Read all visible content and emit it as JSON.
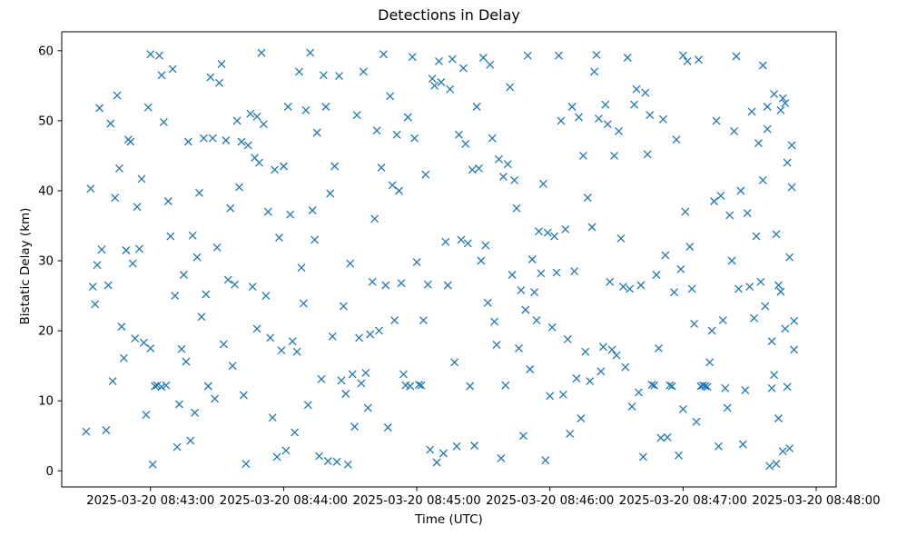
{
  "chart_data": {
    "type": "scatter",
    "title": "Detections in Delay",
    "xlabel": "Time (UTC)",
    "ylabel": "Bistatic Delay (km)",
    "marker": "x",
    "marker_color": "#1f77b4",
    "axes_color": "#000000",
    "x_unit": "seconds after 2025-03-20 08:42:00 UTC",
    "xlim": [
      20,
      369
    ],
    "ylim": [
      -2.3,
      62.7
    ],
    "x_ticks": [
      {
        "t": 60,
        "label": "2025-03-20 08:43:00"
      },
      {
        "t": 120,
        "label": "2025-03-20 08:44:00"
      },
      {
        "t": 180,
        "label": "2025-03-20 08:45:00"
      },
      {
        "t": 240,
        "label": "2025-03-20 08:46:00"
      },
      {
        "t": 300,
        "label": "2025-03-20 08:47:00"
      },
      {
        "t": 360,
        "label": "2025-03-20 08:48:00"
      }
    ],
    "y_ticks": [
      0,
      10,
      20,
      30,
      40,
      50,
      60
    ],
    "points": [
      [
        31,
        5.6
      ],
      [
        33,
        40.3
      ],
      [
        34,
        26.3
      ],
      [
        35,
        23.8
      ],
      [
        36,
        29.4
      ],
      [
        37,
        51.8
      ],
      [
        38,
        31.6
      ],
      [
        40,
        5.8
      ],
      [
        41,
        26.5
      ],
      [
        42,
        49.6
      ],
      [
        43,
        12.8
      ],
      [
        44,
        39.0
      ],
      [
        45,
        53.6
      ],
      [
        46,
        43.2
      ],
      [
        47,
        20.6
      ],
      [
        48,
        16.1
      ],
      [
        49,
        31.5
      ],
      [
        50,
        47.3
      ],
      [
        51,
        47.0
      ],
      [
        52,
        29.6
      ],
      [
        53,
        18.9
      ],
      [
        54,
        37.7
      ],
      [
        55,
        31.7
      ],
      [
        56,
        41.7
      ],
      [
        57,
        18.3
      ],
      [
        58,
        8.0
      ],
      [
        59,
        51.9
      ],
      [
        60,
        59.5
      ],
      [
        60,
        17.5
      ],
      [
        61,
        0.9
      ],
      [
        62,
        12.1
      ],
      [
        63,
        12.2
      ],
      [
        64,
        59.3
      ],
      [
        65,
        56.5
      ],
      [
        65,
        12.0
      ],
      [
        66,
        49.8
      ],
      [
        67,
        12.2
      ],
      [
        68,
        38.5
      ],
      [
        69,
        33.5
      ],
      [
        70,
        57.4
      ],
      [
        71,
        25.0
      ],
      [
        72,
        3.4
      ],
      [
        73,
        9.5
      ],
      [
        74,
        17.4
      ],
      [
        75,
        28.0
      ],
      [
        76,
        15.6
      ],
      [
        77,
        47.0
      ],
      [
        78,
        4.3
      ],
      [
        79,
        33.6
      ],
      [
        80,
        8.3
      ],
      [
        81,
        30.5
      ],
      [
        82,
        39.7
      ],
      [
        83,
        22.0
      ],
      [
        84,
        47.5
      ],
      [
        85,
        25.2
      ],
      [
        86,
        12.1
      ],
      [
        87,
        56.2
      ],
      [
        88,
        47.5
      ],
      [
        89,
        10.3
      ],
      [
        90,
        31.9
      ],
      [
        91,
        55.4
      ],
      [
        92,
        58.1
      ],
      [
        93,
        18.1
      ],
      [
        94,
        47.2
      ],
      [
        95,
        27.3
      ],
      [
        96,
        37.5
      ],
      [
        97,
        15.0
      ],
      [
        98,
        26.6
      ],
      [
        99,
        50.0
      ],
      [
        100,
        40.5
      ],
      [
        101,
        47.0
      ],
      [
        102,
        10.8
      ],
      [
        103,
        1.0
      ],
      [
        104,
        46.5
      ],
      [
        105,
        51.0
      ],
      [
        106,
        26.3
      ],
      [
        107,
        44.7
      ],
      [
        108,
        20.3
      ],
      [
        108,
        50.6
      ],
      [
        109,
        44.0
      ],
      [
        110,
        59.7
      ],
      [
        111,
        49.5
      ],
      [
        112,
        25.0
      ],
      [
        113,
        37.0
      ],
      [
        114,
        19.0
      ],
      [
        115,
        7.6
      ],
      [
        116,
        43.0
      ],
      [
        117,
        2.0
      ],
      [
        118,
        33.3
      ],
      [
        119,
        17.2
      ],
      [
        120,
        43.5
      ],
      [
        121,
        2.9
      ],
      [
        122,
        52.0
      ],
      [
        123,
        36.6
      ],
      [
        124,
        18.5
      ],
      [
        125,
        5.5
      ],
      [
        126,
        17.0
      ],
      [
        127,
        57.0
      ],
      [
        128,
        29.0
      ],
      [
        129,
        23.9
      ],
      [
        130,
        51.5
      ],
      [
        131,
        9.4
      ],
      [
        132,
        59.7
      ],
      [
        133,
        37.2
      ],
      [
        134,
        33.0
      ],
      [
        135,
        48.3
      ],
      [
        136,
        2.1
      ],
      [
        137,
        13.1
      ],
      [
        138,
        56.5
      ],
      [
        139,
        52.0
      ],
      [
        140,
        1.4
      ],
      [
        141,
        39.6
      ],
      [
        142,
        19.2
      ],
      [
        143,
        43.5
      ],
      [
        144,
        1.3
      ],
      [
        145,
        56.4
      ],
      [
        146,
        12.9
      ],
      [
        147,
        23.5
      ],
      [
        148,
        11.0
      ],
      [
        149,
        0.9
      ],
      [
        150,
        29.6
      ],
      [
        151,
        13.8
      ],
      [
        152,
        6.3
      ],
      [
        153,
        50.8
      ],
      [
        154,
        19.0
      ],
      [
        155,
        12.5
      ],
      [
        156,
        57.0
      ],
      [
        157,
        14.0
      ],
      [
        158,
        9.0
      ],
      [
        159,
        19.5
      ],
      [
        160,
        27.0
      ],
      [
        161,
        36.0
      ],
      [
        162,
        48.6
      ],
      [
        163,
        20.0
      ],
      [
        164,
        43.3
      ],
      [
        165,
        59.5
      ],
      [
        166,
        26.5
      ],
      [
        167,
        6.2
      ],
      [
        168,
        53.5
      ],
      [
        169,
        40.8
      ],
      [
        170,
        21.5
      ],
      [
        171,
        48.0
      ],
      [
        172,
        40.0
      ],
      [
        173,
        26.8
      ],
      [
        174,
        13.8
      ],
      [
        175,
        12.2
      ],
      [
        176,
        50.5
      ],
      [
        177,
        12.1
      ],
      [
        178,
        59.1
      ],
      [
        179,
        47.5
      ],
      [
        180,
        29.8
      ],
      [
        181,
        12.3
      ],
      [
        182,
        12.2
      ],
      [
        183,
        21.5
      ],
      [
        184,
        42.3
      ],
      [
        185,
        26.6
      ],
      [
        186,
        3.0
      ],
      [
        187,
        56.0
      ],
      [
        188,
        55.0
      ],
      [
        189,
        1.2
      ],
      [
        190,
        58.5
      ],
      [
        191,
        55.5
      ],
      [
        192,
        2.5
      ],
      [
        193,
        32.7
      ],
      [
        194,
        26.5
      ],
      [
        195,
        54.5
      ],
      [
        196,
        58.8
      ],
      [
        197,
        15.5
      ],
      [
        198,
        3.5
      ],
      [
        199,
        48.0
      ],
      [
        200,
        33.0
      ],
      [
        201,
        57.5
      ],
      [
        202,
        46.7
      ],
      [
        203,
        32.5
      ],
      [
        204,
        12.1
      ],
      [
        205,
        43.0
      ],
      [
        206,
        3.6
      ],
      [
        207,
        52.0
      ],
      [
        208,
        43.2
      ],
      [
        209,
        30.0
      ],
      [
        210,
        59.0
      ],
      [
        211,
        32.2
      ],
      [
        212,
        24.0
      ],
      [
        213,
        58.0
      ],
      [
        214,
        47.5
      ],
      [
        215,
        21.3
      ],
      [
        216,
        18.0
      ],
      [
        217,
        44.5
      ],
      [
        218,
        1.8
      ],
      [
        219,
        42.0
      ],
      [
        220,
        12.2
      ],
      [
        221,
        43.8
      ],
      [
        222,
        54.8
      ],
      [
        223,
        28.0
      ],
      [
        224,
        41.5
      ],
      [
        225,
        37.5
      ],
      [
        226,
        17.5
      ],
      [
        227,
        25.8
      ],
      [
        228,
        5.0
      ],
      [
        229,
        23.0
      ],
      [
        230,
        59.3
      ],
      [
        231,
        14.5
      ],
      [
        232,
        30.2
      ],
      [
        233,
        25.5
      ],
      [
        234,
        21.5
      ],
      [
        235,
        34.2
      ],
      [
        236,
        28.2
      ],
      [
        237,
        41.0
      ],
      [
        238,
        1.5
      ],
      [
        239,
        34.0
      ],
      [
        240,
        10.7
      ],
      [
        241,
        20.5
      ],
      [
        242,
        33.5
      ],
      [
        243,
        28.3
      ],
      [
        244,
        59.3
      ],
      [
        245,
        50.0
      ],
      [
        246,
        10.9
      ],
      [
        247,
        34.5
      ],
      [
        248,
        18.8
      ],
      [
        249,
        5.3
      ],
      [
        250,
        52.0
      ],
      [
        251,
        28.5
      ],
      [
        252,
        13.2
      ],
      [
        253,
        50.5
      ],
      [
        254,
        7.5
      ],
      [
        255,
        45.0
      ],
      [
        256,
        17.0
      ],
      [
        257,
        39.0
      ],
      [
        258,
        12.8
      ],
      [
        259,
        34.8
      ],
      [
        260,
        57.0
      ],
      [
        261,
        59.4
      ],
      [
        262,
        50.3
      ],
      [
        263,
        14.2
      ],
      [
        264,
        17.7
      ],
      [
        265,
        52.3
      ],
      [
        266,
        49.5
      ],
      [
        267,
        27.0
      ],
      [
        268,
        17.3
      ],
      [
        269,
        45.0
      ],
      [
        270,
        16.5
      ],
      [
        271,
        48.5
      ],
      [
        272,
        33.2
      ],
      [
        273,
        26.3
      ],
      [
        274,
        14.8
      ],
      [
        275,
        59.0
      ],
      [
        276,
        26.0
      ],
      [
        277,
        9.2
      ],
      [
        278,
        52.3
      ],
      [
        279,
        54.5
      ],
      [
        280,
        11.2
      ],
      [
        281,
        26.5
      ],
      [
        282,
        2.0
      ],
      [
        283,
        54.0
      ],
      [
        284,
        45.2
      ],
      [
        285,
        50.8
      ],
      [
        286,
        12.3
      ],
      [
        287,
        12.2
      ],
      [
        288,
        28.0
      ],
      [
        289,
        17.5
      ],
      [
        290,
        4.7
      ],
      [
        291,
        50.2
      ],
      [
        292,
        30.8
      ],
      [
        293,
        4.8
      ],
      [
        294,
        12.2
      ],
      [
        295,
        12.1
      ],
      [
        296,
        25.5
      ],
      [
        297,
        47.3
      ],
      [
        298,
        2.2
      ],
      [
        299,
        28.8
      ],
      [
        300,
        59.3
      ],
      [
        300,
        8.8
      ],
      [
        301,
        37.0
      ],
      [
        302,
        58.5
      ],
      [
        303,
        32.0
      ],
      [
        304,
        26.0
      ],
      [
        305,
        21.0
      ],
      [
        306,
        7.0
      ],
      [
        307,
        58.7
      ],
      [
        308,
        12.1
      ],
      [
        309,
        12.2
      ],
      [
        310,
        12.1
      ],
      [
        311,
        12.0
      ],
      [
        312,
        15.5
      ],
      [
        313,
        20.0
      ],
      [
        314,
        38.5
      ],
      [
        315,
        50.0
      ],
      [
        316,
        3.5
      ],
      [
        317,
        39.3
      ],
      [
        318,
        21.5
      ],
      [
        319,
        11.8
      ],
      [
        320,
        9.0
      ],
      [
        321,
        36.5
      ],
      [
        322,
        30.0
      ],
      [
        323,
        48.5
      ],
      [
        324,
        59.2
      ],
      [
        325,
        26.0
      ],
      [
        326,
        40.0
      ],
      [
        327,
        3.8
      ],
      [
        328,
        11.5
      ],
      [
        329,
        36.8
      ],
      [
        330,
        26.3
      ],
      [
        331,
        51.3
      ],
      [
        332,
        21.8
      ],
      [
        333,
        33.5
      ],
      [
        334,
        46.8
      ],
      [
        335,
        27.0
      ],
      [
        336,
        41.5
      ],
      [
        337,
        23.5
      ],
      [
        338,
        52.0
      ],
      [
        339,
        0.7
      ],
      [
        340,
        11.8
      ],
      [
        341,
        53.8
      ],
      [
        342,
        33.8
      ],
      [
        343,
        26.5
      ],
      [
        344,
        51.5
      ],
      [
        345,
        2.8
      ],
      [
        346,
        20.3
      ],
      [
        347,
        12.0
      ],
      [
        348,
        30.5
      ],
      [
        349,
        40.5
      ],
      [
        336,
        57.9
      ],
      [
        338,
        48.8
      ],
      [
        340,
        18.5
      ],
      [
        341,
        13.7
      ],
      [
        342,
        1.0
      ],
      [
        343,
        7.5
      ],
      [
        344,
        25.6
      ],
      [
        345,
        53.2
      ],
      [
        346,
        52.5
      ],
      [
        347,
        44.0
      ],
      [
        348,
        3.2
      ],
      [
        349,
        46.5
      ],
      [
        350,
        21.4
      ],
      [
        350,
        17.3
      ]
    ]
  }
}
